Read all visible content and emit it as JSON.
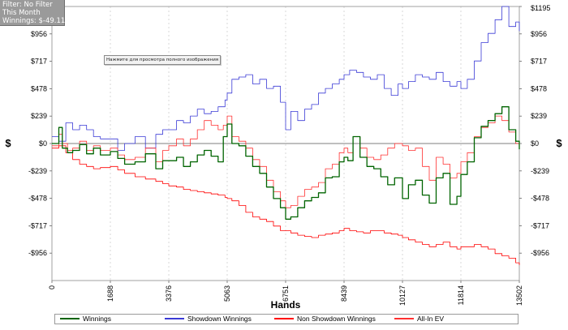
{
  "filter_panel": {
    "filter_line": "Filter: No Filter",
    "period_line": "This Month",
    "winnings_line": "Winnings: $-49.11"
  },
  "tooltip": {
    "text": "Нажмите для просмотра полного изображения"
  },
  "chart_data": {
    "type": "line",
    "title": "",
    "xlabel": "Hands",
    "ylabel_left": "$",
    "ylabel_right": "$",
    "xlim": [
      0,
      13502
    ],
    "ylim": [
      -1195,
      1195
    ],
    "x_ticks": [
      0,
      1688,
      3376,
      5063,
      6751,
      8439,
      10127,
      11814,
      13502
    ],
    "y_ticks_left": [
      {
        "value": 956,
        "label": "$956"
      },
      {
        "value": 717,
        "label": "$717"
      },
      {
        "value": 478,
        "label": "$478"
      },
      {
        "value": 239,
        "label": "$239"
      },
      {
        "value": 0,
        "label": "$0"
      },
      {
        "value": -239,
        "label": "-$239"
      },
      {
        "value": -478,
        "label": "-$478"
      },
      {
        "value": -717,
        "label": "-$717"
      },
      {
        "value": -956,
        "label": "-$956"
      }
    ],
    "y_ticks_right": [
      {
        "value": 1195,
        "label": "$1195"
      },
      {
        "value": 956,
        "label": "$956"
      },
      {
        "value": 717,
        "label": "$717"
      },
      {
        "value": 478,
        "label": "$478"
      },
      {
        "value": 239,
        "label": "$239"
      },
      {
        "value": 0,
        "label": "$0"
      },
      {
        "value": -239,
        "label": "-$239"
      },
      {
        "value": -478,
        "label": "-$478"
      },
      {
        "value": -717,
        "label": "-$717"
      },
      {
        "value": -956,
        "label": "-$956"
      }
    ],
    "grid": "vertical dashed",
    "legend_position": "bottom",
    "series": [
      {
        "name": "Winnings",
        "color": "#006400",
        "x": [
          0,
          200,
          300,
          450,
          600,
          800,
          1000,
          1200,
          1400,
          1688,
          1900,
          2100,
          2400,
          2700,
          3000,
          3200,
          3376,
          3600,
          3800,
          4000,
          4200,
          4400,
          4600,
          4800,
          4950,
          5063,
          5200,
          5400,
          5600,
          5800,
          6000,
          6200,
          6400,
          6600,
          6751,
          6900,
          7100,
          7300,
          7500,
          7700,
          7900,
          8100,
          8300,
          8439,
          8550,
          8700,
          8900,
          9100,
          9300,
          9500,
          9700,
          9900,
          10127,
          10300,
          10500,
          10700,
          10900,
          11100,
          11300,
          11500,
          11700,
          11814,
          12000,
          12200,
          12400,
          12600,
          12800,
          13000,
          13200,
          13400,
          13502
        ],
        "y": [
          0,
          140,
          -40,
          -80,
          -60,
          -10,
          -90,
          -40,
          -100,
          -70,
          -130,
          -180,
          -160,
          -90,
          -220,
          -150,
          -150,
          -120,
          -200,
          -160,
          -100,
          -60,
          -110,
          -160,
          60,
          170,
          0,
          -20,
          -110,
          -200,
          -260,
          -380,
          -480,
          -560,
          -660,
          -640,
          -560,
          -500,
          -470,
          -430,
          -300,
          -290,
          -160,
          -120,
          -150,
          60,
          -120,
          -200,
          -220,
          -290,
          -360,
          -300,
          -480,
          -360,
          -320,
          -450,
          -520,
          -300,
          -260,
          -530,
          -460,
          -270,
          -160,
          50,
          150,
          200,
          260,
          320,
          120,
          20,
          -50
        ]
      },
      {
        "name": "Showdown Winnings",
        "color": "#3a3ad6",
        "x": [
          0,
          200,
          400,
          600,
          800,
          1000,
          1200,
          1400,
          1688,
          1900,
          2100,
          2400,
          2700,
          3000,
          3200,
          3376,
          3600,
          3800,
          4000,
          4200,
          4400,
          4600,
          4800,
          5000,
          5063,
          5200,
          5400,
          5600,
          5800,
          6000,
          6200,
          6400,
          6600,
          6751,
          6900,
          7100,
          7300,
          7500,
          7700,
          7900,
          8100,
          8300,
          8439,
          8600,
          8800,
          9000,
          9200,
          9400,
          9600,
          9800,
          10000,
          10127,
          10300,
          10500,
          10700,
          10900,
          11100,
          11300,
          11500,
          11700,
          11814,
          12000,
          12200,
          12400,
          12600,
          12800,
          13000,
          13200,
          13400,
          13502
        ],
        "y": [
          60,
          20,
          180,
          120,
          160,
          120,
          60,
          40,
          40,
          -60,
          0,
          60,
          -40,
          80,
          120,
          120,
          200,
          180,
          240,
          300,
          260,
          280,
          320,
          380,
          440,
          560,
          580,
          600,
          520,
          560,
          480,
          500,
          360,
          120,
          280,
          200,
          300,
          340,
          440,
          480,
          520,
          560,
          600,
          640,
          620,
          580,
          560,
          600,
          480,
          420,
          520,
          480,
          540,
          600,
          580,
          560,
          620,
          540,
          500,
          540,
          480,
          560,
          720,
          880,
          960,
          1080,
          1195,
          1020,
          1060,
          980
        ]
      },
      {
        "name": "Non Showdown Winnings",
        "color": "#ff0000",
        "x": [
          0,
          200,
          400,
          600,
          800,
          1000,
          1200,
          1400,
          1688,
          1900,
          2100,
          2400,
          2700,
          3000,
          3200,
          3376,
          3600,
          3800,
          4000,
          4200,
          4400,
          4600,
          4800,
          5000,
          5063,
          5200,
          5400,
          5600,
          5800,
          6000,
          6200,
          6400,
          6600,
          6751,
          6900,
          7100,
          7300,
          7500,
          7700,
          7900,
          8100,
          8300,
          8439,
          8600,
          8800,
          9000,
          9200,
          9400,
          9600,
          9800,
          10000,
          10127,
          10300,
          10500,
          10700,
          10900,
          11100,
          11300,
          11500,
          11700,
          11814,
          12000,
          12200,
          12400,
          12600,
          12800,
          13000,
          13200,
          13400,
          13502
        ],
        "y": [
          -40,
          -20,
          -80,
          -140,
          -180,
          -200,
          -220,
          -210,
          -200,
          -230,
          -260,
          -290,
          -310,
          -330,
          -350,
          -370,
          -380,
          -400,
          -410,
          -420,
          -430,
          -440,
          -450,
          -470,
          -480,
          -500,
          -540,
          -600,
          -640,
          -660,
          -680,
          -720,
          -760,
          -760,
          -780,
          -800,
          -810,
          -820,
          -800,
          -790,
          -780,
          -760,
          -740,
          -760,
          -770,
          -780,
          -760,
          -760,
          -780,
          -790,
          -800,
          -820,
          -840,
          -860,
          -880,
          -900,
          -880,
          -860,
          -900,
          -920,
          -900,
          -900,
          -880,
          -900,
          -920,
          -960,
          -980,
          -1000,
          -1040,
          -1060
        ]
      },
      {
        "name": "All-In EV",
        "color": "#ff3030",
        "x": [
          0,
          200,
          300,
          450,
          600,
          800,
          1000,
          1200,
          1400,
          1688,
          1900,
          2100,
          2400,
          2700,
          3000,
          3200,
          3376,
          3600,
          3800,
          4000,
          4200,
          4400,
          4600,
          4800,
          4950,
          5063,
          5200,
          5400,
          5600,
          5800,
          6000,
          6200,
          6400,
          6600,
          6751,
          6900,
          7100,
          7300,
          7500,
          7700,
          7900,
          8100,
          8300,
          8439,
          8550,
          8700,
          8900,
          9100,
          9300,
          9500,
          9700,
          9900,
          10127,
          10300,
          10500,
          10700,
          10900,
          11100,
          11300,
          11500,
          11700,
          11814,
          12000,
          12200,
          12400,
          12600,
          12800,
          13000,
          13200,
          13400,
          13502
        ],
        "y": [
          -20,
          80,
          0,
          -60,
          -40,
          20,
          -60,
          -20,
          -60,
          -40,
          -100,
          -140,
          -120,
          -40,
          -160,
          -60,
          -20,
          40,
          -20,
          40,
          120,
          200,
          160,
          120,
          160,
          240,
          60,
          20,
          -40,
          -140,
          -200,
          -320,
          -420,
          -500,
          -560,
          -540,
          -460,
          -400,
          -380,
          -340,
          -220,
          -180,
          -80,
          -40,
          -80,
          60,
          -40,
          -120,
          -140,
          -100,
          -40,
          0,
          -20,
          -60,
          -40,
          -200,
          -320,
          -120,
          -180,
          -300,
          -260,
          -160,
          -80,
          60,
          140,
          180,
          240,
          200,
          100,
          0,
          -20
        ]
      }
    ]
  },
  "legend": {
    "items": [
      {
        "label": "Winnings",
        "color": "#006400"
      },
      {
        "label": "Showdown Winnings",
        "color": "#3a3ad6"
      },
      {
        "label": "Non Showdown Winnings",
        "color": "#ff0000"
      },
      {
        "label": "All-In EV",
        "color": "#ff3030"
      }
    ]
  }
}
